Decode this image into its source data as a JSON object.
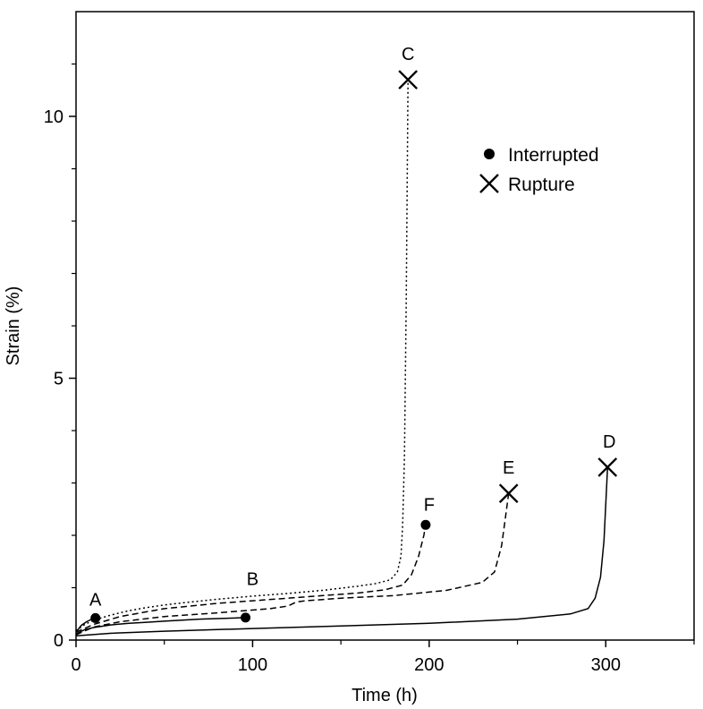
{
  "chart_data": {
    "type": "line",
    "xlabel": "Time (h)",
    "ylabel": "Strain (%)",
    "xlim": [
      0,
      350
    ],
    "ylim": [
      0,
      12
    ],
    "x_ticks": [
      0,
      100,
      200,
      300
    ],
    "y_ticks": [
      0,
      5,
      10
    ],
    "grid": false,
    "legend_placement": "upper-center-right",
    "legend": [
      {
        "label": "Interrupted",
        "marker": "circle"
      },
      {
        "label": "Rupture",
        "marker": "x"
      }
    ],
    "series": [
      {
        "name": "A",
        "line_style": "solid",
        "end_marker": "circle",
        "label": "A",
        "x": [
          0,
          3,
          6,
          9,
          11
        ],
        "y": [
          0.15,
          0.28,
          0.35,
          0.4,
          0.42
        ]
      },
      {
        "name": "B",
        "line_style": "solid",
        "end_marker": "circle",
        "label": "B",
        "x": [
          0,
          5,
          10,
          20,
          30,
          40,
          50,
          60,
          70,
          80,
          90,
          96
        ],
        "y": [
          0.12,
          0.2,
          0.24,
          0.29,
          0.32,
          0.34,
          0.36,
          0.38,
          0.4,
          0.41,
          0.42,
          0.43
        ]
      },
      {
        "name": "C",
        "line_style": "dotted",
        "end_marker": "x",
        "label": "C",
        "x": [
          0,
          5,
          10,
          20,
          30,
          40,
          50,
          60,
          80,
          100,
          120,
          140,
          160,
          170,
          178,
          182,
          184,
          185,
          186,
          187,
          188
        ],
        "y": [
          0.18,
          0.3,
          0.38,
          0.48,
          0.56,
          0.62,
          0.67,
          0.71,
          0.78,
          0.84,
          0.89,
          0.95,
          1.03,
          1.08,
          1.15,
          1.3,
          1.6,
          2.2,
          3.5,
          6.5,
          10.7
        ]
      },
      {
        "name": "D",
        "line_style": "solid",
        "end_marker": "x",
        "label": "D",
        "x": [
          0,
          20,
          50,
          100,
          150,
          200,
          250,
          280,
          290,
          294,
          297,
          299,
          300,
          301
        ],
        "y": [
          0.08,
          0.13,
          0.17,
          0.22,
          0.27,
          0.32,
          0.4,
          0.5,
          0.6,
          0.8,
          1.2,
          1.9,
          2.6,
          3.3
        ]
      },
      {
        "name": "E",
        "line_style": "dashed",
        "end_marker": "x",
        "label": "E",
        "x": [
          0,
          10,
          25,
          50,
          80,
          110,
          120,
          125,
          130,
          150,
          180,
          210,
          230,
          237,
          241,
          243,
          245
        ],
        "y": [
          0.1,
          0.25,
          0.35,
          0.45,
          0.52,
          0.6,
          0.65,
          0.73,
          0.75,
          0.8,
          0.85,
          0.95,
          1.1,
          1.3,
          1.8,
          2.3,
          2.8
        ]
      },
      {
        "name": "F",
        "line_style": "dashed",
        "end_marker": "circle",
        "label": "F",
        "x": [
          0,
          10,
          25,
          50,
          80,
          100,
          120,
          140,
          160,
          175,
          185,
          190,
          194,
          197,
          198
        ],
        "y": [
          0.15,
          0.3,
          0.45,
          0.6,
          0.7,
          0.75,
          0.8,
          0.85,
          0.9,
          0.96,
          1.05,
          1.25,
          1.6,
          2.0,
          2.2
        ]
      }
    ]
  }
}
